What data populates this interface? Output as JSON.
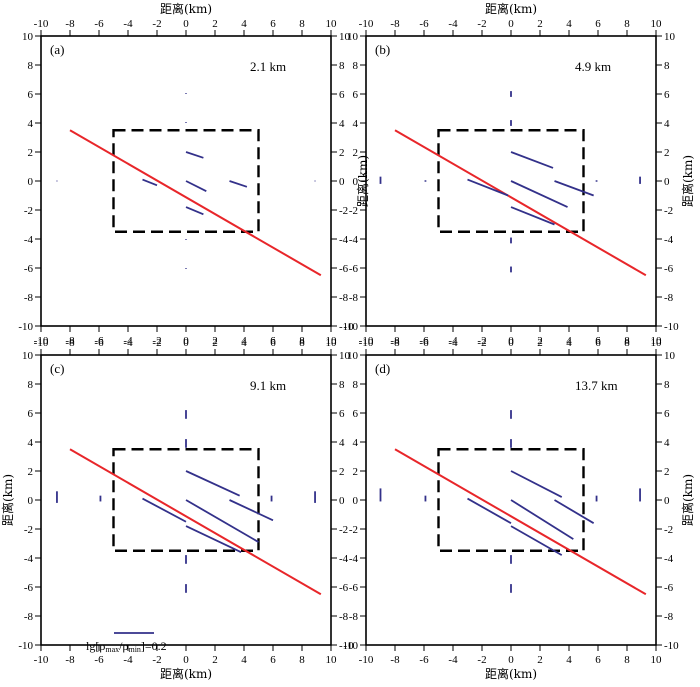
{
  "chart_data": [
    {
      "type": "scatter",
      "label": "(a)",
      "depth": "2.1 km",
      "xlim": [
        -10,
        10
      ],
      "ylim": [
        -10,
        10
      ],
      "xticks": [
        -10,
        -8,
        -6,
        -4,
        -2,
        0,
        2,
        4,
        6,
        8,
        10
      ],
      "yticks": [
        -10,
        -8,
        -6,
        -4,
        -2,
        0,
        2,
        4,
        6,
        8,
        10
      ],
      "top_xlabel": "距离(km)",
      "right_ylabel": "距离(km)",
      "box": {
        "x": [
          -5,
          5
        ],
        "y": [
          -3.5,
          3.5
        ]
      },
      "fault_line": [
        [
          -8,
          3.5
        ],
        [
          9.3,
          -6.5
        ]
      ],
      "segments": [
        [
          [
            0,
            2.0
          ],
          [
            1.2,
            1.6
          ]
        ],
        [
          [
            -3.0,
            0.1
          ],
          [
            -2.0,
            -0.3
          ]
        ],
        [
          [
            0,
            0.0
          ],
          [
            1.4,
            -0.7
          ]
        ],
        [
          [
            3.0,
            0.0
          ],
          [
            4.2,
            -0.4
          ]
        ],
        [
          [
            0,
            -1.8
          ],
          [
            1.2,
            -2.3
          ]
        ],
        [
          [
            0,
            6.0
          ],
          [
            0,
            6.05
          ]
        ],
        [
          [
            0,
            4.0
          ],
          [
            0,
            4.05
          ]
        ],
        [
          [
            0,
            -4.0
          ],
          [
            0,
            -4.05
          ]
        ],
        [
          [
            0,
            -6.0
          ],
          [
            0,
            -6.05
          ]
        ],
        [
          [
            -8.9,
            0.02
          ],
          [
            -8.9,
            -0.02
          ]
        ],
        [
          [
            8.9,
            0.02
          ],
          [
            8.9,
            -0.02
          ]
        ]
      ]
    },
    {
      "type": "scatter",
      "label": "(b)",
      "depth": "4.9 km",
      "xlim": [
        -10,
        10
      ],
      "ylim": [
        -10,
        10
      ],
      "xticks": [
        -10,
        -8,
        -6,
        -4,
        -2,
        0,
        2,
        4,
        6,
        8,
        10
      ],
      "yticks": [
        -10,
        -8,
        -6,
        -4,
        -2,
        0,
        2,
        4,
        6,
        8,
        10
      ],
      "top_xlabel": "距离(km)",
      "right_ylabel": "距离(km)",
      "box": {
        "x": [
          -5,
          5
        ],
        "y": [
          -3.5,
          3.5
        ]
      },
      "fault_line": [
        [
          -8,
          3.5
        ],
        [
          9.3,
          -6.5
        ]
      ],
      "segments": [
        [
          [
            0,
            2.0
          ],
          [
            2.9,
            0.9
          ]
        ],
        [
          [
            -3.0,
            0.1
          ],
          [
            -0.2,
            -1.0
          ]
        ],
        [
          [
            0,
            0.0
          ],
          [
            3.9,
            -1.8
          ]
        ],
        [
          [
            3.0,
            0.0
          ],
          [
            5.7,
            -1.0
          ]
        ],
        [
          [
            0,
            -1.8
          ],
          [
            3.0,
            -3.0
          ]
        ],
        [
          [
            0,
            5.8
          ],
          [
            0,
            6.2
          ]
        ],
        [
          [
            0,
            3.8
          ],
          [
            0,
            4.2
          ]
        ],
        [
          [
            0,
            -3.9
          ],
          [
            0,
            -4.3
          ]
        ],
        [
          [
            0,
            -5.9
          ],
          [
            0,
            -6.3
          ]
        ],
        [
          [
            -9.0,
            0.3
          ],
          [
            -9.0,
            -0.2
          ]
        ],
        [
          [
            8.9,
            0.3
          ],
          [
            8.9,
            -0.2
          ]
        ],
        [
          [
            -5.9,
            0.05
          ],
          [
            -5.9,
            -0.05
          ]
        ],
        [
          [
            5.9,
            0.05
          ],
          [
            5.9,
            -0.05
          ]
        ]
      ]
    },
    {
      "type": "scatter",
      "label": "(c)",
      "depth": "9.1 km",
      "xlim": [
        -10,
        10
      ],
      "ylim": [
        -10,
        10
      ],
      "xticks": [
        -10,
        -8,
        -6,
        -4,
        -2,
        0,
        2,
        4,
        6,
        8,
        10
      ],
      "yticks": [
        -10,
        -8,
        -6,
        -4,
        -2,
        0,
        2,
        4,
        6,
        8,
        10
      ],
      "left_ylabel": "距离(km)",
      "bottom_xlabel": "距离(km)",
      "box": {
        "x": [
          -5,
          5
        ],
        "y": [
          -3.5,
          3.5
        ]
      },
      "fault_line": [
        [
          -8,
          3.5
        ],
        [
          9.3,
          -6.5
        ]
      ],
      "segments": [
        [
          [
            0,
            2.0
          ],
          [
            3.7,
            0.3
          ]
        ],
        [
          [
            -3.0,
            0.1
          ],
          [
            0,
            -1.5
          ]
        ],
        [
          [
            0,
            0.0
          ],
          [
            5.0,
            -2.9
          ]
        ],
        [
          [
            3.0,
            0.0
          ],
          [
            6.0,
            -1.4
          ]
        ],
        [
          [
            0,
            -1.8
          ],
          [
            3.8,
            -3.6
          ]
        ],
        [
          [
            0,
            5.6
          ],
          [
            0,
            6.2
          ]
        ],
        [
          [
            0,
            3.6
          ],
          [
            0,
            4.2
          ]
        ],
        [
          [
            0,
            -3.8
          ],
          [
            0,
            -4.4
          ]
        ],
        [
          [
            0,
            -5.8
          ],
          [
            0,
            -6.4
          ]
        ],
        [
          [
            -8.9,
            0.6
          ],
          [
            -8.9,
            -0.2
          ]
        ],
        [
          [
            8.9,
            0.6
          ],
          [
            8.9,
            -0.2
          ]
        ],
        [
          [
            -5.9,
            0.3
          ],
          [
            -5.9,
            -0.1
          ]
        ],
        [
          [
            5.9,
            0.3
          ],
          [
            5.9,
            -0.1
          ]
        ]
      ],
      "legend": {
        "scale_value": 0.2
      }
    },
    {
      "type": "scatter",
      "label": "(d)",
      "depth": "13.7 km",
      "xlim": [
        -10,
        10
      ],
      "ylim": [
        -10,
        10
      ],
      "xticks": [
        -10,
        -8,
        -6,
        -4,
        -2,
        0,
        2,
        4,
        6,
        8,
        10
      ],
      "yticks": [
        -10,
        -8,
        -6,
        -4,
        -2,
        0,
        2,
        4,
        6,
        8,
        10
      ],
      "right_ylabel": "距离(km)",
      "bottom_xlabel": "距离(km)",
      "box": {
        "x": [
          -5,
          5
        ],
        "y": [
          -3.5,
          3.5
        ]
      },
      "fault_line": [
        [
          -8,
          3.5
        ],
        [
          9.3,
          -6.5
        ]
      ],
      "segments": [
        [
          [
            0,
            2.0
          ],
          [
            3.5,
            0.2
          ]
        ],
        [
          [
            -3.0,
            0.1
          ],
          [
            0,
            -1.6
          ]
        ],
        [
          [
            0,
            0.0
          ],
          [
            4.3,
            -2.7
          ]
        ],
        [
          [
            3.0,
            0.0
          ],
          [
            5.7,
            -1.6
          ]
        ],
        [
          [
            0,
            -1.8
          ],
          [
            3.5,
            -3.8
          ]
        ],
        [
          [
            0,
            5.6
          ],
          [
            0,
            6.2
          ]
        ],
        [
          [
            0,
            3.6
          ],
          [
            0,
            4.2
          ]
        ],
        [
          [
            0,
            -3.8
          ],
          [
            0,
            -4.4
          ]
        ],
        [
          [
            0,
            -5.8
          ],
          [
            0,
            -6.4
          ]
        ],
        [
          [
            -9.0,
            0.8
          ],
          [
            -9.0,
            -0.1
          ]
        ],
        [
          [
            8.9,
            0.8
          ],
          [
            8.9,
            -0.1
          ]
        ],
        [
          [
            -5.9,
            0.3
          ],
          [
            -5.9,
            -0.1
          ]
        ],
        [
          [
            5.9,
            0.3
          ],
          [
            5.9,
            -0.1
          ]
        ]
      ]
    }
  ],
  "legend": {
    "text_prefix": "lg[",
    "rho": "ρ",
    "sub_max": "max",
    "slash": "/",
    "sub_min": "min",
    "text_suffix": "]=0.2"
  },
  "colors": {
    "fault": "#e8262a",
    "segment": "#33318a",
    "box": "#000000",
    "frame": "#000000"
  }
}
